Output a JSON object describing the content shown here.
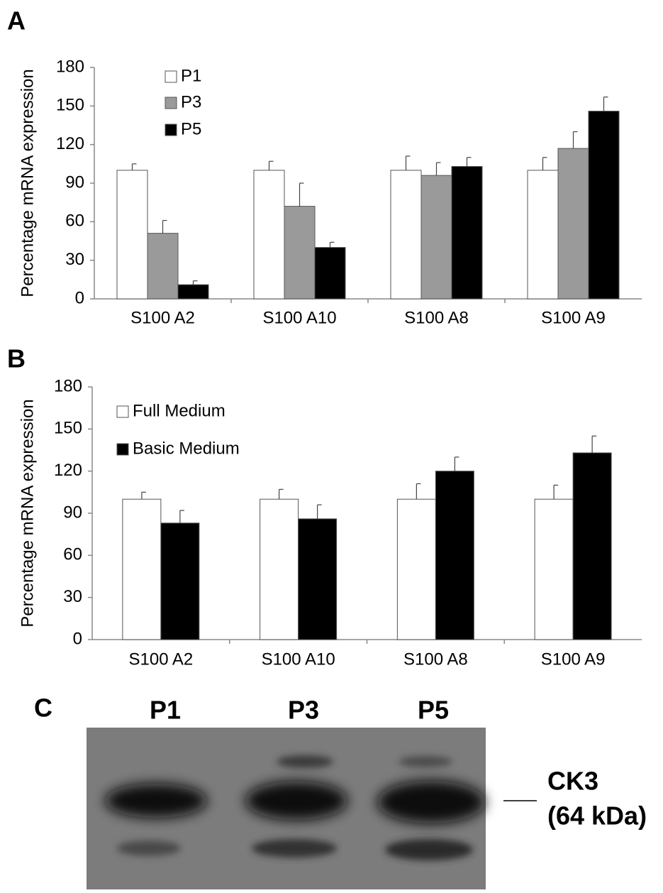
{
  "chart_data": [
    {
      "type": "bar",
      "panel": "A",
      "y_label": "Percentage mRNA expression",
      "categories": [
        "S100 A2",
        "S100 A10",
        "S100 A8",
        "S100 A9"
      ],
      "series": [
        {
          "name": "P1",
          "color": "#ffffff",
          "values": [
            100,
            100,
            100,
            100
          ],
          "errors": [
            5,
            7,
            11,
            10
          ]
        },
        {
          "name": "P3",
          "color": "#9a9a9a",
          "values": [
            51,
            72,
            96,
            117
          ],
          "errors": [
            10,
            18,
            10,
            13
          ]
        },
        {
          "name": "P5",
          "color": "#000000",
          "values": [
            11,
            40,
            103,
            146
          ],
          "errors": [
            3,
            4,
            7,
            11
          ]
        }
      ],
      "ylim": [
        0,
        180
      ],
      "yticks": [
        0,
        30,
        60,
        90,
        120,
        150,
        180
      ]
    },
    {
      "type": "bar",
      "panel": "B",
      "y_label": "Percentage mRNA expression",
      "categories": [
        "S100 A2",
        "S100 A10",
        "S100 A8",
        "S100 A9"
      ],
      "series": [
        {
          "name": "Full Medium",
          "color": "#ffffff",
          "values": [
            100,
            100,
            100,
            100
          ],
          "errors": [
            5,
            7,
            11,
            10
          ]
        },
        {
          "name": "Basic Medium",
          "color": "#000000",
          "values": [
            83,
            86,
            120,
            133
          ],
          "errors": [
            9,
            10,
            10,
            12
          ]
        }
      ],
      "ylim": [
        0,
        180
      ],
      "yticks": [
        0,
        30,
        60,
        90,
        120,
        150,
        180
      ]
    }
  ],
  "blot": {
    "panel": "C",
    "lanes": [
      "P1",
      "P3",
      "P5"
    ],
    "band": "CK3",
    "size": "(64 kDa)"
  }
}
